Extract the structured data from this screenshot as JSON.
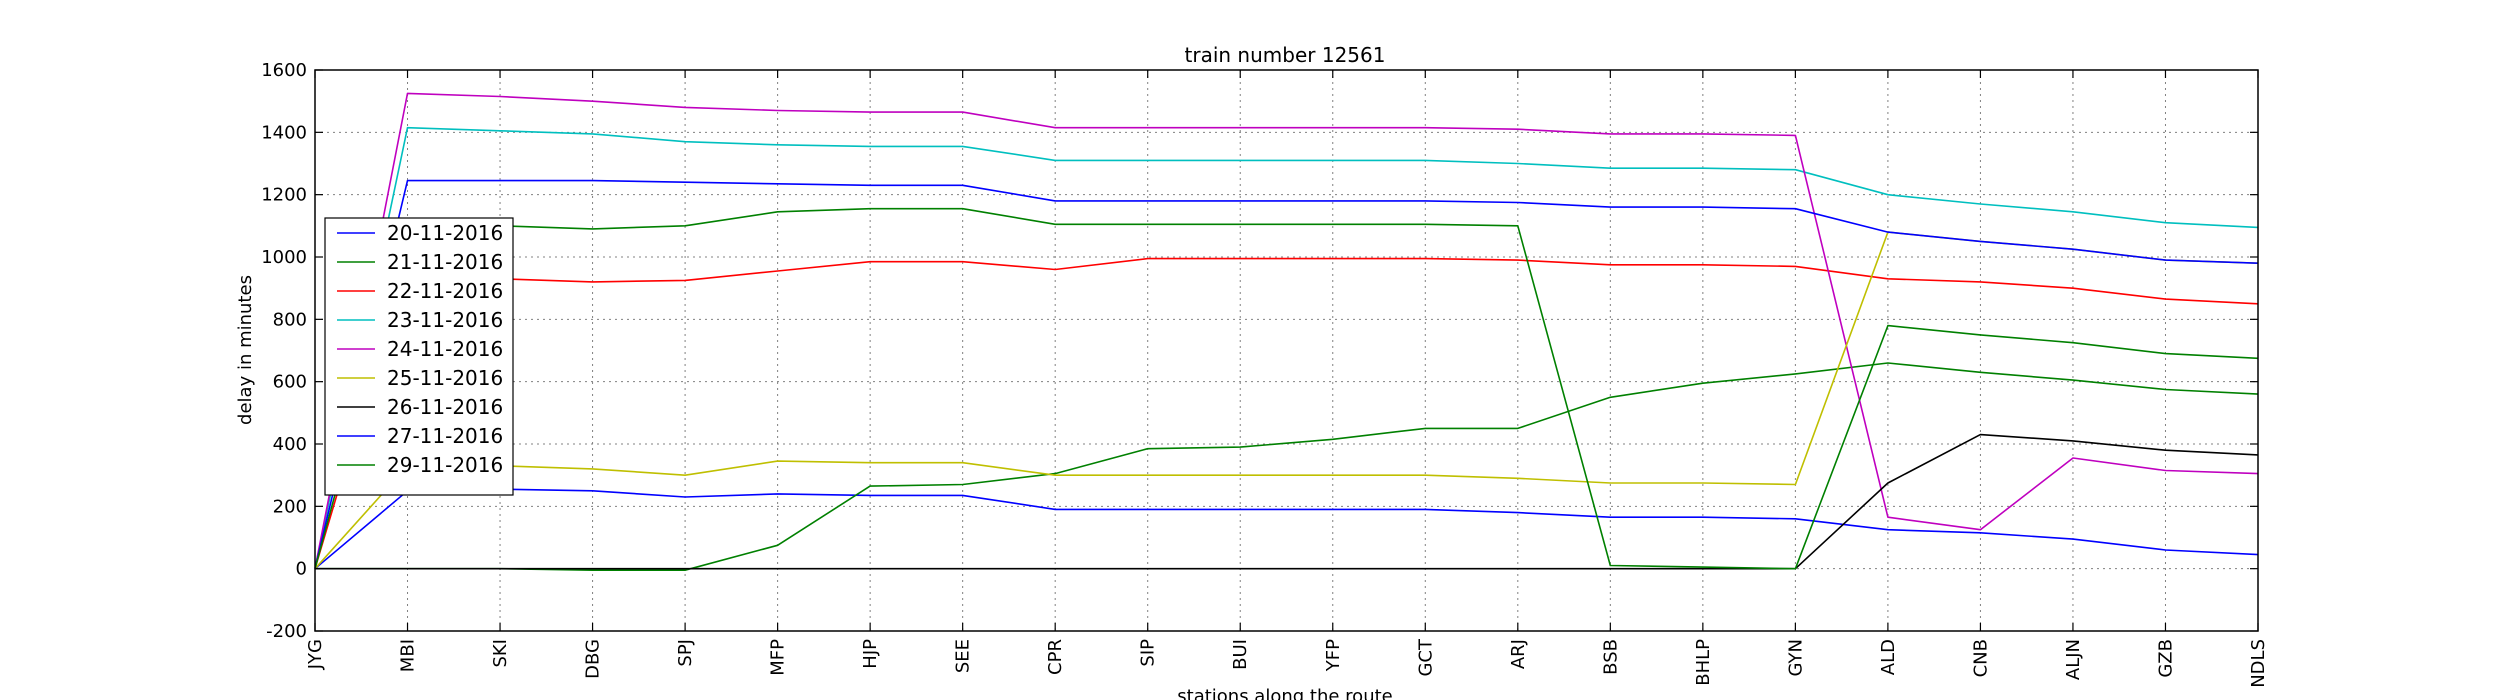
{
  "chart_data": {
    "type": "line",
    "title": "train number 12561",
    "xlabel": "stations along the route",
    "ylabel": "delay in minutes",
    "ylim": [
      -200,
      1600
    ],
    "yticks": [
      -200,
      0,
      200,
      400,
      600,
      800,
      1000,
      1200,
      1400,
      1600
    ],
    "grid": true,
    "legend_position": "left",
    "categories": [
      "JYG",
      "MBI",
      "SKI",
      "DBG",
      "SPJ",
      "MFP",
      "HJP",
      "SEE",
      "CPR",
      "SIP",
      "BUI",
      "YFP",
      "GCT",
      "ARJ",
      "BSB",
      "BHLP",
      "GYN",
      "ALD",
      "CNB",
      "ALJN",
      "GZB",
      "NDLS"
    ],
    "series": [
      {
        "name": "20-11-2016",
        "color": "#0000ff",
        "values": [
          0,
          250,
          255,
          250,
          230,
          240,
          235,
          235,
          190,
          190,
          190,
          190,
          190,
          180,
          165,
          165,
          160,
          125,
          115,
          95,
          60,
          45
        ]
      },
      {
        "name": "21-11-2016",
        "color": "#008000",
        "values": [
          0,
          0,
          0,
          -5,
          -5,
          75,
          265,
          270,
          305,
          385,
          390,
          415,
          450,
          450,
          550,
          595,
          625,
          660,
          630,
          605,
          575,
          560
        ]
      },
      {
        "name": "22-11-2016",
        "color": "#ff0000",
        "values": [
          0,
          1000,
          930,
          920,
          925,
          955,
          985,
          985,
          960,
          995,
          995,
          995,
          995,
          990,
          975,
          975,
          970,
          930,
          920,
          900,
          865,
          850
        ]
      },
      {
        "name": "23-11-2016",
        "color": "#00bfbf",
        "values": [
          0,
          1415,
          1405,
          1395,
          1370,
          1360,
          1355,
          1355,
          1310,
          1310,
          1310,
          1310,
          1310,
          1300,
          1285,
          1285,
          1280,
          1200,
          1170,
          1145,
          1110,
          1095
        ]
      },
      {
        "name": "24-11-2016",
        "color": "#bf00bf",
        "values": [
          0,
          1525,
          1515,
          1500,
          1480,
          1470,
          1465,
          1465,
          1415,
          1415,
          1415,
          1415,
          1415,
          1410,
          1395,
          1395,
          1390,
          165,
          125,
          355,
          315,
          305
        ]
      },
      {
        "name": "25-11-2016",
        "color": "#bfbf00",
        "values": [
          0,
          330,
          330,
          320,
          300,
          345,
          340,
          340,
          300,
          300,
          300,
          300,
          300,
          290,
          275,
          275,
          270,
          1080,
          1050,
          1025,
          990,
          980
        ]
      },
      {
        "name": "26-11-2016",
        "color": "#000000",
        "values": [
          0,
          0,
          0,
          0,
          0,
          0,
          0,
          0,
          0,
          0,
          0,
          0,
          0,
          0,
          0,
          0,
          0,
          275,
          430,
          410,
          380,
          365
        ]
      },
      {
        "name": "27-11-2016",
        "color": "#0000ff",
        "values": [
          0,
          1245,
          1245,
          1245,
          1240,
          1235,
          1230,
          1230,
          1180,
          1180,
          1180,
          1180,
          1180,
          1175,
          1160,
          1160,
          1155,
          1080,
          1050,
          1025,
          990,
          980
        ]
      },
      {
        "name": "29-11-2016",
        "color": "#008000",
        "values": [
          0,
          1100,
          1100,
          1090,
          1100,
          1145,
          1155,
          1155,
          1105,
          1105,
          1105,
          1105,
          1105,
          1100,
          10,
          5,
          0,
          780,
          750,
          725,
          690,
          675
        ]
      }
    ]
  }
}
